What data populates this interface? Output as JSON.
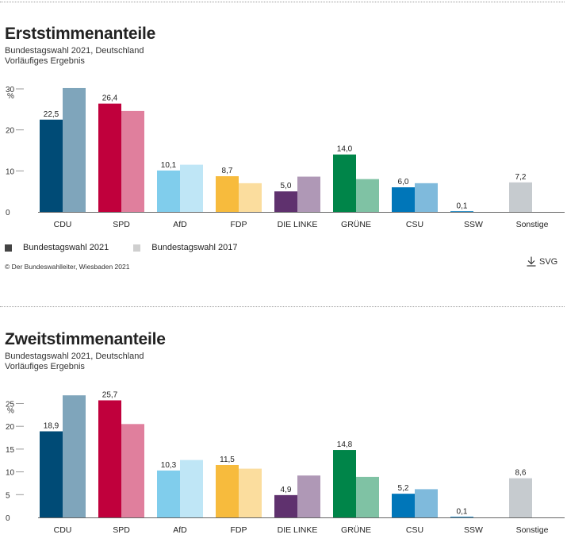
{
  "colors": {
    "CDU": [
      "#004b76",
      "#7fa5bb"
    ],
    "SPD": [
      "#c0003c",
      "#e07f9d"
    ],
    "AfD": [
      "#80cdec",
      "#bfe6f6"
    ],
    "FDP": [
      "#f7bb3d",
      "#fbdd9e"
    ],
    "DIE LINKE": [
      "#5f316e",
      "#af98b6"
    ],
    "GRÜNE": [
      "#008549",
      "#7fc2a4"
    ],
    "CSU": [
      "#0076b9",
      "#7fbadc"
    ],
    "SSW": [
      "#0076b9",
      "#7fbadc"
    ],
    "Sonstige": [
      "#9ea6ac",
      "#c6cbcf"
    ],
    "legend_2021": "#444444",
    "legend_2017": "#cfcfcf"
  },
  "legend": {
    "series_2021": "Bundestagswahl 2021",
    "series_2017": "Bundestagswahl 2017"
  },
  "copyright": "© Der Bundeswahlleiter, Wiesbaden 2021",
  "download": {
    "label": "SVG",
    "icon": "download-icon"
  },
  "chart_data": [
    {
      "type": "bar",
      "title": "Erststimmenanteile",
      "subtitle_1": "Bundestagswahl 2021, Deutschland",
      "subtitle_2": "Vorläufiges Ergebnis",
      "ylabel": "%",
      "ylim": [
        0,
        30
      ],
      "yticks": [
        "0",
        "10",
        "20",
        "30"
      ],
      "categories": [
        "CDU",
        "SPD",
        "AfD",
        "FDP",
        "DIE LINKE",
        "GRÜNE",
        "CSU",
        "SSW",
        "Sonstige"
      ],
      "series": [
        {
          "name": "Bundestagswahl 2021",
          "values": [
            22.5,
            26.4,
            10.1,
            8.7,
            5.0,
            14.0,
            6.0,
            0.1,
            7.2
          ],
          "labels": [
            "22,5",
            "26,4",
            "10,1",
            "8,7",
            "5,0",
            "14,0",
            "6,0",
            "0,1",
            "7,2"
          ]
        },
        {
          "name": "Bundestagswahl 2017",
          "values": [
            30.2,
            24.6,
            11.5,
            7.0,
            8.6,
            8.0,
            7.0,
            0,
            null
          ]
        }
      ]
    },
    {
      "type": "bar",
      "title": "Zweitstimmenanteile",
      "subtitle_1": "Bundestagswahl 2021, Deutschland",
      "subtitle_2": "Vorläufiges Ergebnis",
      "ylabel": "%",
      "ylim": [
        0,
        27
      ],
      "yticks": [
        "0",
        "5",
        "10",
        "15",
        "20",
        "25"
      ],
      "categories": [
        "CDU",
        "SPD",
        "AfD",
        "FDP",
        "DIE LINKE",
        "GRÜNE",
        "CSU",
        "SSW",
        "Sonstige"
      ],
      "series": [
        {
          "name": "Bundestagswahl 2021",
          "values": [
            18.9,
            25.7,
            10.3,
            11.5,
            4.9,
            14.8,
            5.2,
            0.1,
            8.6
          ],
          "labels": [
            "18,9",
            "25,7",
            "10,3",
            "11,5",
            "4,9",
            "14,8",
            "5,2",
            "0,1",
            "8,6"
          ]
        },
        {
          "name": "Bundestagswahl 2017",
          "values": [
            26.8,
            20.5,
            12.6,
            10.7,
            9.2,
            8.9,
            6.2,
            0,
            null
          ]
        }
      ]
    }
  ]
}
